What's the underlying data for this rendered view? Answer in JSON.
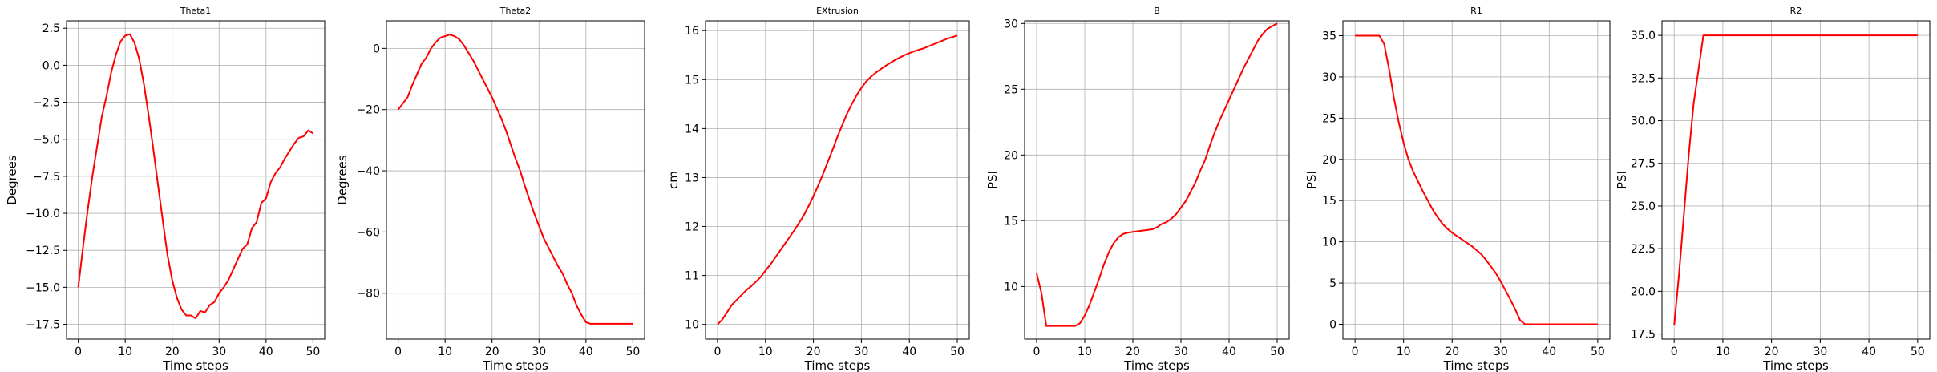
{
  "figure": {
    "line_color": "#ff0000",
    "grid_color": "#b0b0b0",
    "axes_color": "#000000",
    "background": "#ffffff"
  },
  "chart_data": [
    {
      "type": "line",
      "title": "Theta1",
      "xlabel": "Time steps",
      "ylabel": "Degrees",
      "xlim": [
        -2.5,
        52.5
      ],
      "ylim": [
        -18.5,
        3.0
      ],
      "xticks": [
        0,
        10,
        20,
        30,
        40,
        50
      ],
      "xtick_labels": [
        "0",
        "10",
        "20",
        "30",
        "40",
        "50"
      ],
      "yticks": [
        -17.5,
        -15.0,
        -12.5,
        -10.0,
        -7.5,
        -5.0,
        -2.5,
        0.0,
        2.5
      ],
      "ytick_labels": [
        "−17.5",
        "−15.0",
        "−12.5",
        "−10.0",
        "−7.5",
        "−5.0",
        "−2.5",
        "0.0",
        "2.5"
      ],
      "grid": true,
      "series": [
        {
          "color": "#ff0000",
          "x": [
            0,
            1,
            2,
            3,
            4,
            5,
            6,
            7,
            8,
            9,
            10,
            11,
            12,
            13,
            14,
            15,
            16,
            17,
            18,
            19,
            20,
            21,
            22,
            23,
            24,
            25,
            26,
            27,
            28,
            29,
            30,
            31,
            32,
            33,
            34,
            35,
            36,
            37,
            38,
            39,
            40,
            41,
            42,
            43,
            44,
            45,
            46,
            47,
            48,
            49,
            50
          ],
          "y": [
            -15.0,
            -12.3,
            -9.8,
            -7.5,
            -5.5,
            -3.5,
            -2.1,
            -0.5,
            0.7,
            1.6,
            2.0,
            2.1,
            1.5,
            0.4,
            -1.3,
            -3.4,
            -5.7,
            -8.1,
            -10.5,
            -12.8,
            -14.5,
            -15.7,
            -16.5,
            -16.9,
            -16.9,
            -17.1,
            -16.6,
            -16.7,
            -16.2,
            -16.0,
            -15.4,
            -15.0,
            -14.5,
            -13.8,
            -13.1,
            -12.4,
            -12.1,
            -11.0,
            -10.6,
            -9.3,
            -9.0,
            -7.9,
            -7.3,
            -6.9,
            -6.3,
            -5.8,
            -5.3,
            -4.9,
            -4.8,
            -4.4,
            -4.6
          ]
        }
      ]
    },
    {
      "type": "line",
      "title": "Theta2",
      "xlabel": "Time steps",
      "ylabel": "Degrees",
      "xlim": [
        -2.5,
        52.5
      ],
      "ylim": [
        -95.0,
        9.0
      ],
      "xticks": [
        0,
        10,
        20,
        30,
        40,
        50
      ],
      "xtick_labels": [
        "0",
        "10",
        "20",
        "30",
        "40",
        "50"
      ],
      "yticks": [
        -80,
        -60,
        -40,
        -20,
        0
      ],
      "ytick_labels": [
        "−80",
        "−60",
        "−40",
        "−20",
        "0"
      ],
      "grid": true,
      "series": [
        {
          "color": "#ff0000",
          "x": [
            0,
            1,
            2,
            3,
            4,
            5,
            6,
            7,
            8,
            9,
            10,
            11,
            12,
            13,
            14,
            15,
            16,
            17,
            18,
            19,
            20,
            21,
            22,
            23,
            24,
            25,
            26,
            27,
            28,
            29,
            30,
            31,
            32,
            33,
            34,
            35,
            36,
            37,
            38,
            39,
            40,
            41,
            42,
            43,
            44,
            45,
            46,
            47,
            48,
            49,
            50
          ],
          "y": [
            -20.0,
            -18.0,
            -16.0,
            -12.0,
            -8.5,
            -5.0,
            -3.0,
            0.0,
            2.0,
            3.5,
            4.0,
            4.5,
            4.0,
            3.0,
            1.0,
            -1.5,
            -4.0,
            -7.0,
            -10.0,
            -13.0,
            -16.0,
            -19.5,
            -23.0,
            -27.0,
            -31.5,
            -36.0,
            -40.0,
            -45.0,
            -49.5,
            -54.0,
            -58.0,
            -62.0,
            -65.0,
            -68.0,
            -71.0,
            -73.5,
            -77.0,
            -80.0,
            -84.0,
            -87.0,
            -89.5,
            -90.0,
            -90.0,
            -90.0,
            -90.0,
            -90.0,
            -90.0,
            -90.0,
            -90.0,
            -90.0,
            -90.0
          ]
        }
      ]
    },
    {
      "type": "line",
      "title": "EXtrusion",
      "xlabel": "Time steps",
      "ylabel": "cm",
      "xlim": [
        -2.5,
        52.5
      ],
      "ylim": [
        9.7,
        16.2
      ],
      "xticks": [
        0,
        10,
        20,
        30,
        40,
        50
      ],
      "xtick_labels": [
        "0",
        "10",
        "20",
        "30",
        "40",
        "50"
      ],
      "yticks": [
        10,
        11,
        12,
        13,
        14,
        15,
        16
      ],
      "ytick_labels": [
        "10",
        "11",
        "12",
        "13",
        "14",
        "15",
        "16"
      ],
      "grid": true,
      "series": [
        {
          "color": "#ff0000",
          "x": [
            0,
            1,
            2,
            3,
            4,
            5,
            6,
            7,
            8,
            9,
            10,
            11,
            12,
            13,
            14,
            15,
            16,
            17,
            18,
            19,
            20,
            21,
            22,
            23,
            24,
            25,
            26,
            27,
            28,
            29,
            30,
            31,
            32,
            33,
            34,
            35,
            36,
            37,
            38,
            39,
            40,
            41,
            42,
            43,
            44,
            45,
            46,
            47,
            48,
            49,
            50
          ],
          "y": [
            10.0,
            10.1,
            10.25,
            10.4,
            10.5,
            10.6,
            10.7,
            10.78,
            10.87,
            10.97,
            11.1,
            11.22,
            11.36,
            11.5,
            11.64,
            11.78,
            11.92,
            12.07,
            12.23,
            12.42,
            12.62,
            12.84,
            13.07,
            13.32,
            13.57,
            13.83,
            14.07,
            14.3,
            14.5,
            14.68,
            14.83,
            14.96,
            15.06,
            15.14,
            15.21,
            15.28,
            15.34,
            15.4,
            15.45,
            15.5,
            15.54,
            15.58,
            15.61,
            15.64,
            15.68,
            15.72,
            15.76,
            15.8,
            15.84,
            15.87,
            15.9
          ]
        }
      ]
    },
    {
      "type": "line",
      "title": "B",
      "xlabel": "Time steps",
      "ylabel": "PSI",
      "xlim": [
        -2.5,
        52.5
      ],
      "ylim": [
        6.0,
        30.2
      ],
      "xticks": [
        0,
        10,
        20,
        30,
        40,
        50
      ],
      "xtick_labels": [
        "0",
        "10",
        "20",
        "30",
        "40",
        "50"
      ],
      "yticks": [
        10,
        15,
        20,
        25,
        30
      ],
      "ytick_labels": [
        "10",
        "15",
        "20",
        "25",
        "30"
      ],
      "grid": true,
      "series": [
        {
          "color": "#ff0000",
          "x": [
            0,
            1,
            2,
            3,
            4,
            5,
            6,
            7,
            8,
            9,
            10,
            11,
            12,
            13,
            14,
            15,
            16,
            17,
            18,
            19,
            20,
            21,
            22,
            23,
            24,
            25,
            26,
            27,
            28,
            29,
            30,
            31,
            32,
            33,
            34,
            35,
            36,
            37,
            38,
            39,
            40,
            41,
            42,
            43,
            44,
            45,
            46,
            47,
            48,
            49,
            50
          ],
          "y": [
            11.0,
            9.5,
            7.0,
            7.0,
            7.0,
            7.0,
            7.0,
            7.0,
            7.0,
            7.2,
            7.8,
            8.6,
            9.6,
            10.6,
            11.7,
            12.6,
            13.3,
            13.75,
            14.0,
            14.1,
            14.15,
            14.2,
            14.25,
            14.3,
            14.35,
            14.5,
            14.75,
            14.9,
            15.15,
            15.5,
            16.0,
            16.5,
            17.2,
            17.9,
            18.8,
            19.6,
            20.7,
            21.7,
            22.6,
            23.4,
            24.2,
            25.0,
            25.8,
            26.6,
            27.3,
            28.0,
            28.7,
            29.2,
            29.6,
            29.8,
            30.0
          ]
        }
      ]
    },
    {
      "type": "line",
      "title": "R1",
      "xlabel": "Time steps",
      "ylabel": "PSI",
      "xlim": [
        -2.5,
        52.5
      ],
      "ylim": [
        -1.8,
        36.8
      ],
      "xticks": [
        0,
        10,
        20,
        30,
        40,
        50
      ],
      "xtick_labels": [
        "0",
        "10",
        "20",
        "30",
        "40",
        "50"
      ],
      "yticks": [
        0,
        5,
        10,
        15,
        20,
        25,
        30,
        35
      ],
      "ytick_labels": [
        "0",
        "5",
        "10",
        "15",
        "20",
        "25",
        "30",
        "35"
      ],
      "grid": true,
      "series": [
        {
          "color": "#ff0000",
          "x": [
            0,
            1,
            2,
            3,
            4,
            5,
            6,
            7,
            8,
            9,
            10,
            11,
            12,
            13,
            14,
            15,
            16,
            17,
            18,
            19,
            20,
            21,
            22,
            23,
            24,
            25,
            26,
            27,
            28,
            29,
            30,
            31,
            32,
            33,
            34,
            35,
            36,
            37,
            38,
            39,
            40,
            41,
            42,
            43,
            44,
            45,
            46,
            47,
            48,
            49,
            50
          ],
          "y": [
            35.0,
            35.0,
            35.0,
            35.0,
            35.0,
            35.0,
            34.0,
            31.0,
            27.5,
            24.5,
            22.0,
            20.0,
            18.5,
            17.3,
            16.1,
            15.0,
            13.9,
            13.0,
            12.2,
            11.6,
            11.1,
            10.7,
            10.3,
            9.9,
            9.5,
            9.0,
            8.5,
            7.8,
            7.0,
            6.2,
            5.2,
            4.1,
            3.0,
            1.8,
            0.5,
            0.0,
            0.0,
            0.0,
            0.0,
            0.0,
            0.0,
            0.0,
            0.0,
            0.0,
            0.0,
            0.0,
            0.0,
            0.0,
            0.0,
            0.0,
            0.0
          ]
        }
      ]
    },
    {
      "type": "line",
      "title": "R2",
      "xlabel": "Time steps",
      "ylabel": "PSI",
      "xlim": [
        -2.5,
        52.5
      ],
      "ylim": [
        17.2,
        35.85
      ],
      "xticks": [
        0,
        10,
        20,
        30,
        40,
        50
      ],
      "xtick_labels": [
        "0",
        "10",
        "20",
        "30",
        "40",
        "50"
      ],
      "yticks": [
        17.5,
        20.0,
        22.5,
        25.0,
        27.5,
        30.0,
        32.5,
        35.0
      ],
      "ytick_labels": [
        "17.5",
        "20.0",
        "22.5",
        "25.0",
        "27.5",
        "30.0",
        "32.5",
        "35.0"
      ],
      "grid": true,
      "series": [
        {
          "color": "#ff0000",
          "x": [
            0,
            1,
            2,
            3,
            4,
            5,
            6,
            7,
            8,
            9,
            10,
            11,
            12,
            13,
            14,
            15,
            16,
            17,
            18,
            19,
            20,
            21,
            22,
            23,
            24,
            25,
            26,
            27,
            28,
            29,
            30,
            31,
            32,
            33,
            34,
            35,
            36,
            37,
            38,
            39,
            40,
            41,
            42,
            43,
            44,
            45,
            46,
            47,
            48,
            49,
            50
          ],
          "y": [
            18.0,
            21.0,
            24.5,
            28.0,
            31.0,
            33.0,
            35.0,
            35.0,
            35.0,
            35.0,
            35.0,
            35.0,
            35.0,
            35.0,
            35.0,
            35.0,
            35.0,
            35.0,
            35.0,
            35.0,
            35.0,
            35.0,
            35.0,
            35.0,
            35.0,
            35.0,
            35.0,
            35.0,
            35.0,
            35.0,
            35.0,
            35.0,
            35.0,
            35.0,
            35.0,
            35.0,
            35.0,
            35.0,
            35.0,
            35.0,
            35.0,
            35.0,
            35.0,
            35.0,
            35.0,
            35.0,
            35.0,
            35.0,
            35.0,
            35.0,
            35.0
          ]
        }
      ]
    }
  ]
}
